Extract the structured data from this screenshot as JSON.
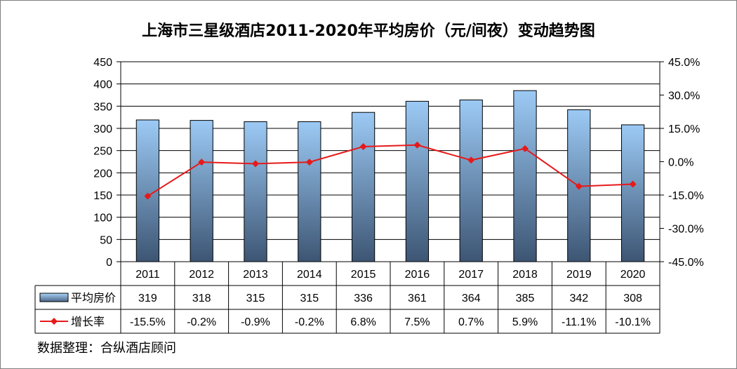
{
  "title": "上海市三星级酒店2011-2020年平均房价（元/间夜）变动趋势图",
  "source": "数据整理：合纵酒店顾问",
  "colors": {
    "bar_top": "#9ccaf5",
    "bar_bottom": "#3d5573",
    "line": "#e61a1a",
    "grid": "#000000"
  },
  "chart_data": {
    "type": "bar",
    "categories": [
      "2011",
      "2012",
      "2013",
      "2014",
      "2015",
      "2016",
      "2017",
      "2018",
      "2019",
      "2020"
    ],
    "series": [
      {
        "name": "平均房价",
        "type": "bar",
        "axis": "left",
        "values": [
          319,
          318,
          315,
          315,
          336,
          361,
          364,
          385,
          342,
          308
        ],
        "labels": [
          "319",
          "318",
          "315",
          "315",
          "336",
          "361",
          "364",
          "385",
          "342",
          "308"
        ]
      },
      {
        "name": "增长率",
        "type": "line",
        "axis": "right",
        "values": [
          -15.5,
          -0.2,
          -0.9,
          -0.2,
          6.8,
          7.5,
          0.7,
          5.9,
          -11.1,
          -10.1
        ],
        "labels": [
          "-15.5%",
          "-0.2%",
          "-0.9%",
          "-0.2%",
          "6.8%",
          "7.5%",
          "0.7%",
          "5.9%",
          "-11.1%",
          "-10.1%"
        ]
      }
    ],
    "y_left": {
      "range": [
        0,
        450
      ],
      "ticks": [
        0,
        50,
        100,
        150,
        200,
        250,
        300,
        350,
        400,
        450
      ],
      "tick_labels": [
        "0",
        "50",
        "100",
        "150",
        "200",
        "250",
        "300",
        "350",
        "400",
        "450"
      ]
    },
    "y_right": {
      "range": [
        -45,
        45
      ],
      "ticks": [
        -45,
        -30,
        -15,
        0,
        15,
        30,
        45
      ],
      "tick_labels": [
        "-45.0%",
        "-30.0%",
        "-15.0%",
        "0.0%",
        "15.0%",
        "30.0%",
        "45.0%"
      ]
    },
    "grid": true,
    "legend": "data-table"
  }
}
